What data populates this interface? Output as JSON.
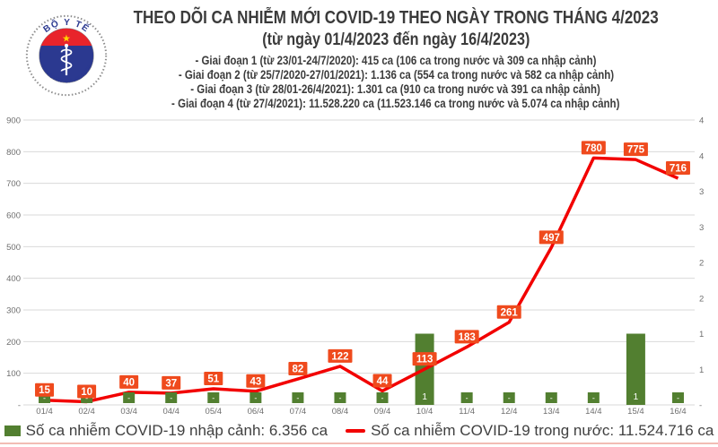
{
  "logo": {
    "top_text": "BỘ Y TẾ",
    "bottom_text": "MINISTRY OF HEALTH",
    "colors": {
      "navy": "#2B3990",
      "red": "#E8242B",
      "star": "#FFD400",
      "ring": "#8C8C8C"
    }
  },
  "header": {
    "title": "THEO DÕI CA NHIỄM MỚI COVID-19 THEO NGÀY TRONG THÁNG 4/2023",
    "subtitle": "(từ ngày 01/4/2023 đến ngày 16/4/2023)",
    "notes": [
      "- Giai đoạn 1 (từ 23/01-24/7/2020): 415 ca (106 ca trong nước và 309 ca nhập cảnh)",
      "- Giai đoạn 2 (từ 25/7/2020-27/01/2021): 1.136 ca (554 ca trong nước và 582 ca nhập cảnh)",
      "- Giai đoạn 3 (từ 28/01-26/4/2021): 1.301 ca (910 ca trong nước và 391 ca nhập cảnh)",
      "- Giai đoạn 4 (từ 27/4/2021): 11.528.220 ca (11.523.146 ca trong nước và 5.074 ca nhập cảnh)"
    ]
  },
  "chart_data": {
    "type": "bar",
    "subtype": "combo bar + line, dual axis",
    "categories": [
      "01/4",
      "02/4",
      "03/4",
      "04/4",
      "05/4",
      "06/4",
      "07/4",
      "08/4",
      "09/4",
      "10/4",
      "11/4",
      "12/4",
      "13/4",
      "14/4",
      "15/4",
      "16/4"
    ],
    "series": [
      {
        "name": "Số ca nhiễm COVID-19 nhập cảnh",
        "type": "bar",
        "axis": "right",
        "color": "#527F30",
        "values": [
          0,
          0,
          0,
          0,
          0,
          0,
          0,
          0,
          0,
          1,
          0,
          0,
          0,
          0,
          1,
          0
        ],
        "labels": [
          "-",
          "-",
          "-",
          "-",
          "-",
          "-",
          "-",
          "-",
          "-",
          "1",
          "-",
          "-",
          "-",
          "-",
          "1",
          "-"
        ]
      },
      {
        "name": "Số ca nhiễm COVID-19 trong nước",
        "type": "line",
        "axis": "left",
        "color": "#F20000",
        "values": [
          15,
          10,
          40,
          37,
          51,
          43,
          82,
          122,
          44,
          113,
          183,
          261,
          497,
          780,
          775,
          716
        ]
      }
    ],
    "left_axis": {
      "min": 0,
      "max": 900,
      "step": 100,
      "tick_labels": [
        "900",
        "800",
        "700",
        "600",
        "500",
        "400",
        "300",
        "200",
        "100",
        "-"
      ]
    },
    "right_axis": {
      "min": 0,
      "max": 4,
      "step": 0.5,
      "tick_labels": [
        "4",
        "4",
        "3",
        "3",
        "2",
        "2",
        "1",
        "1",
        "-"
      ]
    },
    "grid": true,
    "legend_position": "bottom",
    "style": {
      "grid_color": "#D9D9D9",
      "axis_text_color": "#6E6E6E",
      "line_label_bg": "#EF4A1D",
      "bar_label_bg": "#527F30",
      "label_text_color": "#FFFFFF"
    }
  },
  "legend": {
    "imported_label": "Số ca nhiễm COVID-19 nhập cảnh: 6.356 ca",
    "domestic_label": "Số ca nhiễm COVID-19 trong nước: 11.524.716 ca"
  },
  "footer": {
    "rule_color": "#F2BCB4"
  }
}
